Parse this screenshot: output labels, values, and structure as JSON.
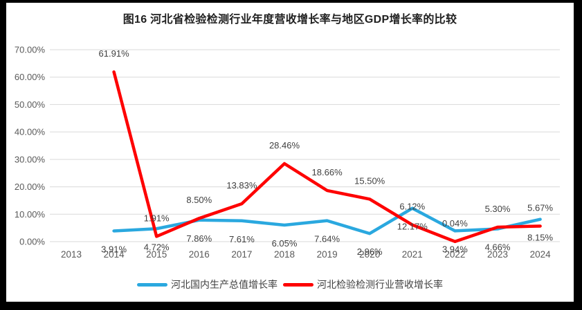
{
  "page": {
    "frame_color": "#000000",
    "card_color": "#ffffff"
  },
  "chart_data": {
    "type": "line",
    "title": "图16 河北省检验检测行业年度营收增长率与地区GDP增长率的比较",
    "categories": [
      "2013",
      "2014",
      "2015",
      "2016",
      "2017",
      "2018",
      "2019",
      "2020",
      "2021",
      "2022",
      "2023",
      "2024"
    ],
    "y_ticks": [
      "0.00%",
      "10.00%",
      "20.00%",
      "30.00%",
      "40.00%",
      "50.00%",
      "60.00%",
      "70.00%"
    ],
    "ylim": [
      0,
      70
    ],
    "grid": true,
    "legend_position": "bottom",
    "gridline_color": "#d9d9d9",
    "axis_label_color": "#595959",
    "data_label_color": "#404040",
    "series": [
      {
        "key": "gdp",
        "name": "河北国内生产总值增长率",
        "color": "#2aa8df",
        "label_position": "below",
        "values": [
          null,
          3.91,
          4.72,
          7.86,
          7.61,
          6.05,
          7.64,
          2.96,
          12.17,
          3.94,
          4.66,
          8.15
        ],
        "labels": [
          null,
          "3.91%",
          "4.72%",
          "7.86%",
          "7.61%",
          "6.05%",
          "7.64%",
          "2.96%",
          "12.17%",
          "3.94%",
          "4.66%",
          "8.15%"
        ]
      },
      {
        "key": "revenue",
        "name": "河北检验检测行业营收增长率",
        "color": "#fe0000",
        "label_position": "above",
        "values": [
          null,
          61.91,
          1.91,
          8.5,
          13.83,
          28.46,
          18.66,
          15.5,
          6.12,
          0.04,
          5.3,
          5.67
        ],
        "labels": [
          null,
          "61.91%",
          "1.91%",
          "8.50%",
          "13.83%",
          "28.46%",
          "18.66%",
          "15.50%",
          "6.12%",
          "0.04%",
          "5.30%",
          "5.67%"
        ]
      }
    ]
  }
}
